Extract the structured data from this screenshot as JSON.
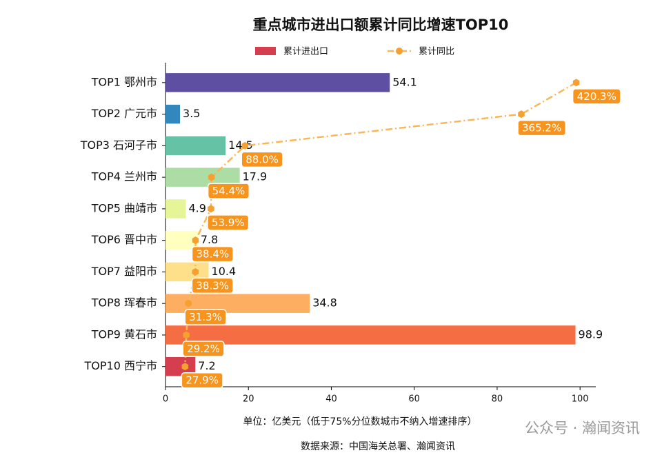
{
  "chart_data": {
    "type": "bar",
    "orientation": "horizontal",
    "title": "重点城市进出口额累计同比增速TOP10",
    "categories": [
      "TOP1 鄂州市",
      "TOP2 广元市",
      "TOP3 石河子市",
      "TOP4 兰州市",
      "TOP5 曲靖市",
      "TOP6 晋中市",
      "TOP7 益阳市",
      "TOP8 珲春市",
      "TOP9 黄石市",
      "TOP10 西宁市"
    ],
    "series": [
      {
        "name": "累计进出口",
        "type": "bar",
        "colors": [
          "#5e4fa2",
          "#3288bd",
          "#66c2a5",
          "#abdda4",
          "#e6f598",
          "#ffffbf",
          "#fee08b",
          "#fdae61",
          "#f46d43",
          "#d53e4f"
        ],
        "values": [
          54.1,
          3.5,
          14.5,
          17.9,
          4.9,
          7.8,
          10.4,
          34.8,
          98.9,
          7.2
        ]
      },
      {
        "name": "累计同比",
        "type": "line",
        "axis": "x2",
        "color": "#f9b65a",
        "marker_color": "#f5a030",
        "label_color": "#f7941d",
        "values": [
          420.3,
          365.2,
          88.0,
          54.4,
          53.9,
          38.4,
          38.3,
          31.3,
          29.2,
          27.9
        ],
        "value_labels": [
          "420.3%",
          "365.2%",
          "88.0%",
          "54.4%",
          "53.9%",
          "38.4%",
          "38.3%",
          "31.3%",
          "29.2%",
          "27.9%"
        ]
      }
    ],
    "xlim": [
      0,
      103.8
    ],
    "xticks": [
      0,
      20,
      40,
      60,
      80,
      100
    ],
    "x2lim": [
      8.3,
      439.9
    ],
    "xlabel": "单位：亿美元（低于75%分位数城市不纳入增速排序）",
    "source": "数据来源：中国海关总署、瀚闻资讯",
    "watermark": "公众号 · 瀚闻资讯",
    "legend": "top"
  }
}
